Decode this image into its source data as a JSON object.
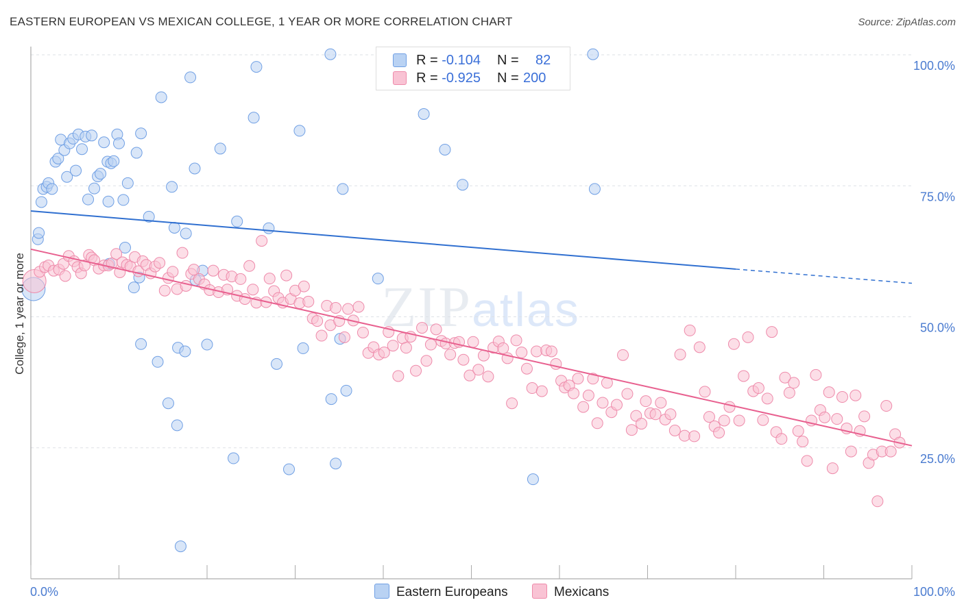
{
  "title": "EASTERN EUROPEAN VS MEXICAN COLLEGE, 1 YEAR OR MORE CORRELATION CHART",
  "source": "Source: ZipAtlas.com",
  "watermark": {
    "zip": "ZIP",
    "atlas": "atlas"
  },
  "legend": {
    "r_label": "R =",
    "n_label": "N =",
    "rows": [
      {
        "r": "-0.104",
        "n": "82",
        "color": "#a9c6f2"
      },
      {
        "r": "-0.925",
        "n": "200",
        "color": "#f7b6cb"
      }
    ]
  },
  "bottom_legend": [
    "Eastern Europeans",
    "Mexicans"
  ],
  "chart_data": {
    "type": "scatter",
    "title": "EASTERN EUROPEAN VS MEXICAN COLLEGE, 1 YEAR OR MORE CORRELATION CHART",
    "xlabel": "",
    "ylabel": "College, 1 year or more",
    "xlim": [
      0,
      100
    ],
    "ylim": [
      0,
      102
    ],
    "x_tick_labels": [
      "0.0%",
      "100.0%"
    ],
    "y_tick_labels": [
      "25.0%",
      "50.0%",
      "75.0%",
      "100.0%"
    ],
    "y_ticks": [
      25,
      50,
      75,
      100
    ],
    "grid": true,
    "legend_position": "top-center",
    "series": [
      {
        "name": "Eastern Europeans",
        "color": "#6f9fe4",
        "fill": "#b9d2f3",
        "line_color": "#2f6fd0",
        "trend": {
          "x0": 0,
          "y0": 70.2,
          "x1": 80,
          "y1": 59.1,
          "dash_to": 100,
          "dash_y": 56.4
        },
        "points": [
          [
            0.3,
            55.3,
            "L"
          ],
          [
            0.8,
            64.8
          ],
          [
            0.9,
            66.0
          ],
          [
            1.2,
            71.9
          ],
          [
            1.4,
            74.4
          ],
          [
            1.8,
            74.8
          ],
          [
            2.0,
            75.5
          ],
          [
            2.4,
            74.4
          ],
          [
            2.8,
            79.6
          ],
          [
            3.1,
            80.2
          ],
          [
            3.4,
            83.8
          ],
          [
            3.8,
            81.8
          ],
          [
            4.1,
            76.7
          ],
          [
            4.4,
            83.1
          ],
          [
            4.8,
            84.0
          ],
          [
            5.1,
            77.9
          ],
          [
            5.4,
            84.8
          ],
          [
            5.8,
            82.0
          ],
          [
            6.2,
            84.4
          ],
          [
            6.5,
            72.4
          ],
          [
            6.9,
            84.6
          ],
          [
            7.2,
            74.5
          ],
          [
            7.6,
            76.8
          ],
          [
            7.9,
            77.3
          ],
          [
            8.3,
            83.3
          ],
          [
            8.7,
            79.6
          ],
          [
            8.8,
            72.0
          ],
          [
            8.9,
            60.1
          ],
          [
            9.1,
            79.3
          ],
          [
            9.4,
            79.7
          ],
          [
            9.8,
            84.8
          ],
          [
            10.0,
            83.1
          ],
          [
            10.5,
            72.3
          ],
          [
            10.7,
            63.2
          ],
          [
            11.0,
            75.5
          ],
          [
            11.7,
            55.6
          ],
          [
            12.0,
            81.3
          ],
          [
            12.3,
            57.5
          ],
          [
            12.5,
            85.0
          ],
          [
            12.5,
            44.8
          ],
          [
            13.4,
            69.1
          ],
          [
            14.4,
            41.4
          ],
          [
            14.8,
            91.9
          ],
          [
            15.6,
            33.5
          ],
          [
            16.0,
            74.8
          ],
          [
            16.3,
            67.0
          ],
          [
            16.6,
            29.3
          ],
          [
            16.7,
            44.1
          ],
          [
            17.0,
            6.2
          ],
          [
            17.5,
            43.4
          ],
          [
            17.6,
            65.9
          ],
          [
            18.1,
            95.7
          ],
          [
            18.6,
            78.3
          ],
          [
            18.7,
            57.0
          ],
          [
            19.5,
            58.8
          ],
          [
            20.0,
            44.7
          ],
          [
            21.5,
            82.1
          ],
          [
            23.0,
            23.0
          ],
          [
            23.4,
            68.2
          ],
          [
            25.3,
            88.0
          ],
          [
            25.6,
            97.7
          ],
          [
            27.0,
            66.9
          ],
          [
            27.9,
            41.0
          ],
          [
            29.3,
            20.9
          ],
          [
            30.5,
            85.5
          ],
          [
            30.9,
            44.0
          ],
          [
            34.0,
            100.1
          ],
          [
            34.1,
            34.3
          ],
          [
            34.6,
            22.0
          ],
          [
            35.1,
            45.8
          ],
          [
            35.4,
            74.4
          ],
          [
            35.8,
            35.9
          ],
          [
            39.4,
            57.3
          ],
          [
            44.6,
            88.7
          ],
          [
            47.0,
            81.9
          ],
          [
            49.0,
            75.2
          ],
          [
            57.0,
            19.0
          ],
          [
            63.8,
            100.1
          ],
          [
            64.0,
            74.4
          ]
        ]
      },
      {
        "name": "Mexicans",
        "color": "#ee8aaa",
        "fill": "#f9c3d4",
        "line_color": "#e8608f",
        "trend": {
          "x0": 0,
          "y0": 62.9,
          "x1": 100,
          "y1": 25.4
        },
        "points": [
          [
            0.4,
            56.8,
            "L"
          ],
          [
            1.0,
            58.6
          ],
          [
            1.6,
            59.5
          ],
          [
            2.0,
            59.8
          ],
          [
            2.6,
            58.8
          ],
          [
            3.2,
            59.0
          ],
          [
            3.7,
            60.1
          ],
          [
            3.9,
            57.8
          ],
          [
            4.3,
            61.6
          ],
          [
            4.9,
            60.6
          ],
          [
            5.3,
            59.5
          ],
          [
            5.7,
            58.3
          ],
          [
            6.1,
            59.8
          ],
          [
            6.6,
            61.8
          ],
          [
            6.9,
            61.3
          ],
          [
            7.2,
            60.8
          ],
          [
            7.7,
            59.2
          ],
          [
            8.3,
            59.8
          ],
          [
            8.8,
            59.8
          ],
          [
            9.2,
            60.2
          ],
          [
            9.7,
            62.0
          ],
          [
            10.1,
            58.5
          ],
          [
            10.4,
            60.4
          ],
          [
            10.9,
            59.9
          ],
          [
            11.3,
            59.6
          ],
          [
            11.8,
            61.4
          ],
          [
            12.2,
            58.7
          ],
          [
            12.7,
            60.6
          ],
          [
            13.1,
            59.9
          ],
          [
            13.6,
            58.3
          ],
          [
            14.1,
            59.6
          ],
          [
            14.6,
            60.3
          ],
          [
            15.2,
            55.0
          ],
          [
            15.6,
            57.4
          ],
          [
            16.1,
            58.6
          ],
          [
            16.6,
            55.3
          ],
          [
            17.2,
            62.2
          ],
          [
            17.6,
            55.9
          ],
          [
            18.2,
            58.2
          ],
          [
            18.5,
            59.0
          ],
          [
            19.1,
            57.2
          ],
          [
            19.7,
            56.2
          ],
          [
            20.3,
            55.1
          ],
          [
            20.7,
            58.8
          ],
          [
            21.3,
            54.7
          ],
          [
            21.9,
            58.0
          ],
          [
            22.3,
            55.2
          ],
          [
            22.8,
            57.7
          ],
          [
            23.4,
            54.0
          ],
          [
            23.8,
            57.2
          ],
          [
            24.3,
            53.4
          ],
          [
            24.8,
            59.7
          ],
          [
            25.2,
            55.2
          ],
          [
            25.6,
            52.7
          ],
          [
            26.2,
            64.5
          ],
          [
            26.7,
            52.8
          ],
          [
            27.1,
            57.3
          ],
          [
            27.6,
            54.9
          ],
          [
            28.1,
            53.6
          ],
          [
            28.6,
            52.7
          ],
          [
            29.0,
            57.9
          ],
          [
            29.5,
            53.4
          ],
          [
            30.0,
            55.0
          ],
          [
            30.5,
            52.6
          ],
          [
            31.0,
            55.8
          ],
          [
            31.5,
            52.9
          ],
          [
            32.0,
            49.7
          ],
          [
            32.5,
            49.2
          ],
          [
            33.0,
            46.4
          ],
          [
            33.6,
            52.1
          ],
          [
            34.0,
            48.4
          ],
          [
            34.6,
            51.7
          ],
          [
            35.0,
            49.2
          ],
          [
            35.6,
            46.1
          ],
          [
            36.0,
            51.5
          ],
          [
            36.6,
            49.3
          ],
          [
            37.2,
            51.9
          ],
          [
            37.7,
            47.0
          ],
          [
            38.3,
            43.1
          ],
          [
            38.9,
            44.2
          ],
          [
            39.5,
            42.8
          ],
          [
            40.1,
            43.2
          ],
          [
            40.6,
            47.1
          ],
          [
            41.1,
            44.5
          ],
          [
            41.7,
            38.7
          ],
          [
            42.2,
            45.9
          ],
          [
            42.6,
            44.1
          ],
          [
            43.1,
            46.2
          ],
          [
            43.7,
            39.7
          ],
          [
            44.4,
            47.9
          ],
          [
            44.9,
            41.6
          ],
          [
            45.4,
            44.7
          ],
          [
            46.0,
            47.6
          ],
          [
            46.6,
            45.4
          ],
          [
            47.1,
            44.9
          ],
          [
            47.6,
            42.8
          ],
          [
            48.1,
            45.0
          ],
          [
            48.6,
            45.2
          ],
          [
            49.1,
            41.8
          ],
          [
            49.8,
            38.8
          ],
          [
            50.2,
            45.2
          ],
          [
            50.8,
            39.9
          ],
          [
            51.4,
            42.6
          ],
          [
            51.9,
            38.6
          ],
          [
            52.5,
            44.1
          ],
          [
            53.1,
            45.3
          ],
          [
            53.6,
            44.0
          ],
          [
            54.1,
            42.1
          ],
          [
            54.6,
            33.5
          ],
          [
            55.1,
            45.5
          ],
          [
            55.7,
            43.2
          ],
          [
            56.3,
            40.1
          ],
          [
            56.9,
            36.4
          ],
          [
            57.4,
            43.4
          ],
          [
            58.0,
            35.8
          ],
          [
            58.5,
            43.6
          ],
          [
            59.1,
            43.4
          ],
          [
            59.6,
            41.0
          ],
          [
            60.2,
            37.8
          ],
          [
            60.6,
            36.5
          ],
          [
            61.1,
            36.9
          ],
          [
            61.6,
            35.4
          ],
          [
            62.1,
            38.2
          ],
          [
            62.7,
            32.8
          ],
          [
            63.3,
            35.0
          ],
          [
            63.8,
            38.2
          ],
          [
            64.3,
            29.7
          ],
          [
            64.9,
            33.6
          ],
          [
            65.4,
            37.4
          ],
          [
            65.9,
            31.8
          ],
          [
            66.5,
            33.2
          ],
          [
            67.2,
            42.7
          ],
          [
            67.7,
            35.3
          ],
          [
            68.2,
            28.4
          ],
          [
            68.7,
            31.1
          ],
          [
            69.3,
            29.6
          ],
          [
            69.8,
            33.9
          ],
          [
            70.3,
            31.6
          ],
          [
            70.9,
            31.4
          ],
          [
            71.5,
            33.6
          ],
          [
            72.0,
            30.4
          ],
          [
            72.6,
            31.4
          ],
          [
            73.1,
            28.3
          ],
          [
            73.7,
            42.8
          ],
          [
            74.2,
            27.3
          ],
          [
            74.8,
            47.4
          ],
          [
            75.3,
            27.2
          ],
          [
            75.9,
            44.2
          ],
          [
            76.5,
            35.7
          ],
          [
            77.0,
            30.9
          ],
          [
            77.6,
            29.1
          ],
          [
            78.1,
            27.9
          ],
          [
            78.7,
            30.2
          ],
          [
            79.3,
            32.8
          ],
          [
            79.8,
            44.8
          ],
          [
            80.4,
            30.2
          ],
          [
            80.9,
            38.7
          ],
          [
            81.4,
            46.1
          ],
          [
            82.0,
            35.8
          ],
          [
            82.6,
            36.4
          ],
          [
            83.1,
            30.3
          ],
          [
            83.6,
            34.4
          ],
          [
            84.1,
            47.1
          ],
          [
            84.6,
            28.0
          ],
          [
            85.2,
            26.7
          ],
          [
            85.6,
            38.4
          ],
          [
            86.1,
            35.5
          ],
          [
            86.6,
            37.4
          ],
          [
            87.1,
            28.2
          ],
          [
            87.6,
            26.2
          ],
          [
            88.1,
            22.5
          ],
          [
            88.6,
            30.2
          ],
          [
            89.1,
            38.9
          ],
          [
            89.6,
            32.2
          ],
          [
            90.1,
            30.8
          ],
          [
            90.6,
            35.6
          ],
          [
            91.0,
            21.1
          ],
          [
            91.5,
            30.5
          ],
          [
            92.1,
            34.7
          ],
          [
            92.6,
            28.7
          ],
          [
            93.1,
            24.3
          ],
          [
            93.6,
            35.0
          ],
          [
            94.1,
            28.2
          ],
          [
            94.6,
            31.0
          ],
          [
            95.1,
            22.1
          ],
          [
            95.6,
            23.7
          ],
          [
            96.1,
            14.8
          ],
          [
            96.6,
            24.3
          ],
          [
            97.1,
            33.0
          ],
          [
            97.6,
            24.3
          ],
          [
            98.1,
            27.6
          ],
          [
            98.6,
            26.0
          ]
        ]
      }
    ]
  }
}
